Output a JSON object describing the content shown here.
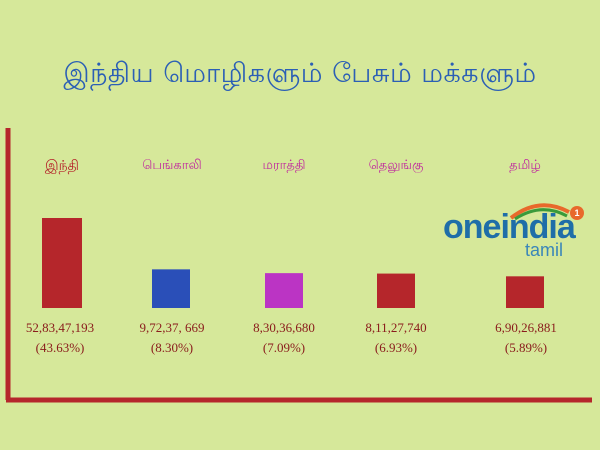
{
  "chart_data": {
    "type": "bar",
    "title": "இந்திய மொழிகளும் பேசும் மக்களும்",
    "categories": [
      "இந்தி",
      "பெங்காலி",
      "மராத்தி",
      "தெலுங்கு",
      "தமிழ்"
    ],
    "values": [
      528347193,
      97237669,
      83036680,
      81127740,
      69026881
    ],
    "value_labels": [
      "52,83,47,193",
      "9,72,37, 669",
      "8,30,36,680",
      "8,11,27,740",
      "6,90,26,881"
    ],
    "percent_labels": [
      "(43.63%)",
      "(8.30%)",
      "(7.09%)",
      "(6.93%)",
      "(5.89%)"
    ],
    "bar_colors": [
      "#b5262b",
      "#2a4fb8",
      "#bb34c4",
      "#b5262b",
      "#b5262b"
    ],
    "axis_color": "#b5262b",
    "grid": false
  },
  "logo": {
    "main": "oneindia",
    "sub": "tamil",
    "badge": "1"
  }
}
